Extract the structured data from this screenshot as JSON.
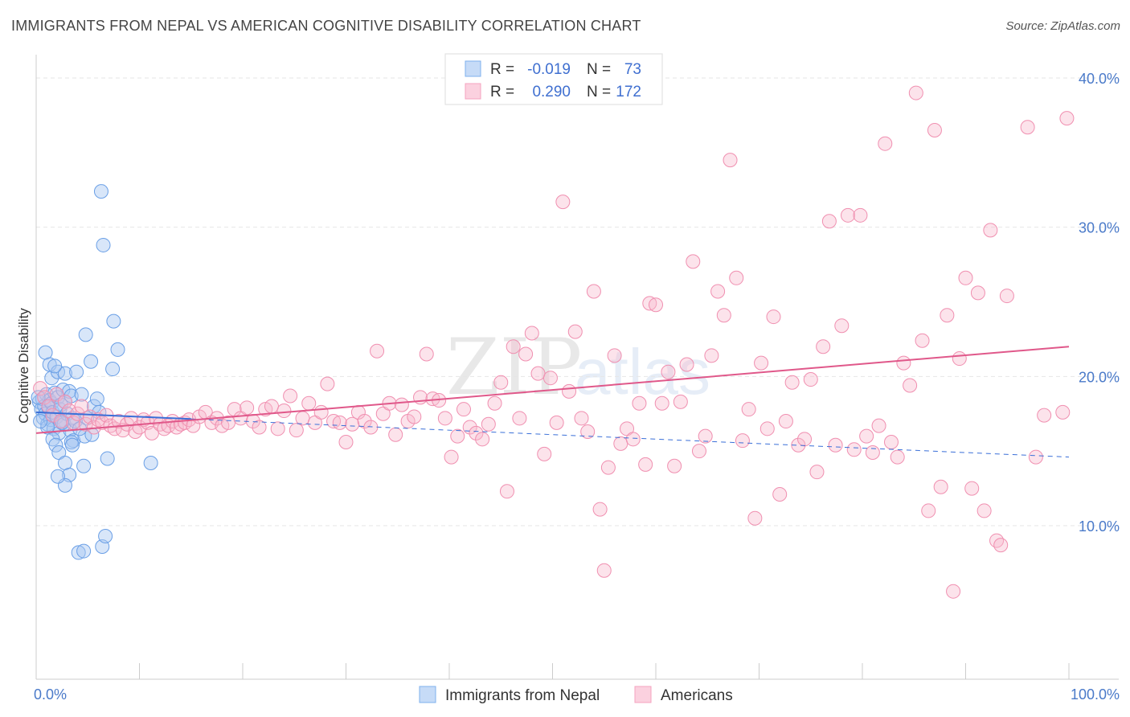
{
  "title": "IMMIGRANTS FROM NEPAL VS AMERICAN COGNITIVE DISABILITY CORRELATION CHART",
  "source": "Source: ZipAtlas.com",
  "watermark": "ZIPatlas",
  "chart_data": {
    "type": "scatter",
    "xlabel": "",
    "ylabel": "Cognitive Disability",
    "xlim": [
      0,
      100
    ],
    "ylim": [
      0,
      40
    ],
    "x_tick_labels": [
      "0.0%",
      "100.0%"
    ],
    "y_ticks": [
      10,
      20,
      30,
      40
    ],
    "y_tick_labels": [
      "10.0%",
      "20.0%",
      "30.0%",
      "40.0%"
    ],
    "legend_top": [
      {
        "r_label": "R =",
        "r_value": "-0.019",
        "n_label": "N =",
        "n_value": "73"
      },
      {
        "r_label": "R =",
        "r_value": "0.290",
        "n_label": "N =",
        "n_value": "172"
      }
    ],
    "series": [
      {
        "name": "Immigrants from Nepal",
        "color": "#7fb0ee",
        "line_color": "#3a6fd8",
        "trend": {
          "x0": 0,
          "y0": 17.6,
          "x1": 100,
          "y1": 14.6,
          "solid_until": 15
        },
        "points": [
          [
            0.3,
            18.3
          ],
          [
            0.5,
            17.8
          ],
          [
            0.6,
            18.5
          ],
          [
            0.7,
            17.2
          ],
          [
            0.8,
            18.0
          ],
          [
            0.9,
            17.5
          ],
          [
            1.0,
            18.8
          ],
          [
            1.1,
            16.8
          ],
          [
            1.2,
            17.9
          ],
          [
            1.3,
            18.4
          ],
          [
            1.4,
            17.1
          ],
          [
            1.5,
            18.2
          ],
          [
            1.6,
            17.6
          ],
          [
            1.7,
            16.5
          ],
          [
            1.8,
            18.9
          ],
          [
            2.0,
            17.3
          ],
          [
            2.1,
            18.6
          ],
          [
            2.2,
            16.2
          ],
          [
            2.3,
            17.8
          ],
          [
            2.4,
            18.1
          ],
          [
            2.5,
            17.0
          ],
          [
            2.6,
            19.1
          ],
          [
            2.7,
            16.8
          ],
          [
            2.8,
            18.3
          ],
          [
            3.0,
            17.5
          ],
          [
            3.2,
            19.0
          ],
          [
            3.3,
            16.4
          ],
          [
            3.4,
            18.7
          ],
          [
            3.5,
            17.2
          ],
          [
            3.6,
            15.7
          ],
          [
            0.9,
            21.6
          ],
          [
            1.3,
            20.8
          ],
          [
            1.5,
            19.9
          ],
          [
            2.1,
            20.3
          ],
          [
            2.8,
            20.2
          ],
          [
            1.8,
            20.7
          ],
          [
            3.9,
            20.3
          ],
          [
            4.8,
            22.8
          ],
          [
            5.3,
            21.0
          ],
          [
            7.4,
            20.5
          ],
          [
            7.5,
            23.7
          ],
          [
            7.9,
            21.8
          ],
          [
            6.5,
            28.8
          ],
          [
            6.3,
            32.4
          ],
          [
            1.6,
            15.8
          ],
          [
            1.9,
            15.4
          ],
          [
            2.2,
            14.9
          ],
          [
            2.8,
            14.2
          ],
          [
            3.2,
            13.4
          ],
          [
            3.4,
            15.6
          ],
          [
            3.5,
            15.4
          ],
          [
            4.6,
            14.0
          ],
          [
            4.7,
            16.0
          ],
          [
            5.4,
            16.1
          ],
          [
            6.9,
            14.5
          ],
          [
            11.1,
            14.2
          ],
          [
            2.8,
            12.7
          ],
          [
            2.1,
            13.3
          ],
          [
            4.1,
            8.2
          ],
          [
            4.6,
            8.3
          ],
          [
            6.4,
            8.6
          ],
          [
            6.7,
            9.3
          ],
          [
            5.6,
            18.0
          ],
          [
            5.9,
            18.5
          ],
          [
            4.4,
            18.8
          ],
          [
            4.9,
            17.2
          ],
          [
            6.1,
            17.6
          ],
          [
            3.8,
            17.0
          ],
          [
            4.2,
            16.5
          ],
          [
            2.5,
            16.9
          ],
          [
            1.1,
            16.6
          ],
          [
            0.4,
            17.0
          ],
          [
            0.2,
            18.6
          ]
        ]
      },
      {
        "name": "Americans",
        "color": "#f4a3bf",
        "line_color": "#e0588a",
        "trend": {
          "x0": 0,
          "y0": 16.2,
          "x1": 100,
          "y1": 22.0
        },
        "points": [
          [
            0.4,
            19.2
          ],
          [
            0.8,
            18.6
          ],
          [
            1.2,
            18.0
          ],
          [
            1.6,
            17.4
          ],
          [
            2.0,
            18.8
          ],
          [
            2.4,
            17.0
          ],
          [
            2.8,
            18.3
          ],
          [
            3.2,
            17.7
          ],
          [
            3.6,
            16.9
          ],
          [
            4.0,
            17.5
          ],
          [
            4.4,
            18.0
          ],
          [
            4.8,
            16.8
          ],
          [
            5.2,
            17.3
          ],
          [
            5.6,
            16.6
          ],
          [
            6.0,
            17.1
          ],
          [
            6.4,
            16.9
          ],
          [
            6.8,
            17.4
          ],
          [
            7.2,
            16.7
          ],
          [
            7.6,
            16.5
          ],
          [
            8.0,
            17.0
          ],
          [
            8.4,
            16.4
          ],
          [
            8.8,
            16.8
          ],
          [
            9.2,
            17.2
          ],
          [
            9.6,
            16.3
          ],
          [
            10.0,
            16.6
          ],
          [
            10.4,
            17.1
          ],
          [
            10.8,
            16.9
          ],
          [
            11.2,
            16.2
          ],
          [
            11.6,
            17.2
          ],
          [
            12.0,
            16.8
          ],
          [
            12.4,
            16.5
          ],
          [
            12.8,
            16.7
          ],
          [
            13.2,
            17.0
          ],
          [
            13.6,
            16.6
          ],
          [
            14.0,
            16.8
          ],
          [
            14.4,
            16.9
          ],
          [
            14.8,
            17.1
          ],
          [
            15.2,
            16.7
          ],
          [
            15.8,
            17.3
          ],
          [
            16.4,
            17.6
          ],
          [
            17.0,
            16.9
          ],
          [
            17.5,
            17.2
          ],
          [
            18.0,
            16.7
          ],
          [
            18.6,
            16.9
          ],
          [
            19.2,
            17.8
          ],
          [
            19.8,
            17.2
          ],
          [
            20.4,
            17.9
          ],
          [
            21.0,
            17.0
          ],
          [
            21.6,
            16.6
          ],
          [
            22.2,
            17.8
          ],
          [
            22.8,
            18.0
          ],
          [
            23.4,
            16.5
          ],
          [
            24.0,
            17.7
          ],
          [
            24.6,
            18.7
          ],
          [
            25.2,
            16.4
          ],
          [
            25.8,
            17.2
          ],
          [
            26.4,
            18.2
          ],
          [
            27.0,
            16.9
          ],
          [
            27.6,
            17.6
          ],
          [
            28.2,
            19.5
          ],
          [
            28.8,
            17.0
          ],
          [
            29.4,
            16.9
          ],
          [
            30.0,
            15.6
          ],
          [
            30.6,
            16.8
          ],
          [
            31.2,
            17.6
          ],
          [
            31.8,
            17.0
          ],
          [
            32.4,
            16.6
          ],
          [
            33.0,
            21.7
          ],
          [
            33.6,
            17.5
          ],
          [
            34.2,
            18.2
          ],
          [
            34.8,
            16.1
          ],
          [
            35.4,
            18.1
          ],
          [
            36.0,
            17.0
          ],
          [
            36.6,
            17.3
          ],
          [
            37.2,
            18.6
          ],
          [
            37.8,
            21.5
          ],
          [
            38.4,
            18.5
          ],
          [
            39.0,
            18.4
          ],
          [
            39.6,
            17.2
          ],
          [
            40.2,
            14.6
          ],
          [
            40.8,
            16.0
          ],
          [
            41.4,
            17.8
          ],
          [
            42.0,
            16.6
          ],
          [
            42.6,
            16.2
          ],
          [
            43.2,
            15.8
          ],
          [
            43.8,
            16.8
          ],
          [
            44.4,
            18.2
          ],
          [
            45.0,
            19.6
          ],
          [
            45.6,
            12.3
          ],
          [
            46.2,
            22.0
          ],
          [
            46.8,
            17.2
          ],
          [
            47.4,
            21.5
          ],
          [
            48.0,
            22.9
          ],
          [
            48.6,
            20.2
          ],
          [
            49.2,
            14.8
          ],
          [
            49.8,
            19.9
          ],
          [
            50.4,
            16.9
          ],
          [
            51.0,
            31.7
          ],
          [
            51.6,
            19.0
          ],
          [
            52.2,
            23.0
          ],
          [
            52.8,
            17.2
          ],
          [
            53.4,
            16.3
          ],
          [
            54.0,
            25.7
          ],
          [
            54.6,
            11.1
          ],
          [
            55.0,
            7.0
          ],
          [
            55.4,
            13.9
          ],
          [
            56.0,
            21.4
          ],
          [
            56.6,
            15.5
          ],
          [
            57.2,
            16.5
          ],
          [
            57.8,
            15.8
          ],
          [
            58.4,
            18.2
          ],
          [
            59.0,
            14.1
          ],
          [
            59.4,
            24.9
          ],
          [
            60.0,
            24.8
          ],
          [
            60.6,
            18.2
          ],
          [
            61.2,
            20.3
          ],
          [
            61.8,
            14.0
          ],
          [
            62.4,
            18.3
          ],
          [
            63.0,
            20.8
          ],
          [
            63.6,
            27.7
          ],
          [
            64.2,
            15.0
          ],
          [
            64.8,
            16.0
          ],
          [
            65.4,
            21.4
          ],
          [
            66.0,
            25.7
          ],
          [
            66.6,
            24.1
          ],
          [
            67.2,
            34.5
          ],
          [
            67.8,
            26.6
          ],
          [
            68.4,
            15.7
          ],
          [
            69.0,
            17.8
          ],
          [
            69.6,
            10.5
          ],
          [
            70.2,
            20.9
          ],
          [
            70.8,
            16.5
          ],
          [
            71.4,
            24.0
          ],
          [
            72.0,
            12.1
          ],
          [
            72.6,
            17.0
          ],
          [
            73.2,
            19.6
          ],
          [
            73.8,
            15.4
          ],
          [
            74.4,
            15.8
          ],
          [
            75.0,
            19.8
          ],
          [
            75.6,
            13.6
          ],
          [
            76.2,
            22.0
          ],
          [
            76.8,
            30.4
          ],
          [
            77.4,
            15.4
          ],
          [
            78.0,
            23.4
          ],
          [
            78.6,
            30.8
          ],
          [
            79.2,
            15.1
          ],
          [
            79.8,
            30.8
          ],
          [
            80.4,
            16.0
          ],
          [
            81.0,
            14.9
          ],
          [
            81.6,
            16.7
          ],
          [
            82.2,
            35.6
          ],
          [
            82.8,
            15.6
          ],
          [
            83.4,
            14.6
          ],
          [
            84.0,
            20.9
          ],
          [
            84.6,
            19.4
          ],
          [
            85.2,
            39.0
          ],
          [
            85.8,
            22.4
          ],
          [
            86.4,
            11.0
          ],
          [
            87.0,
            36.5
          ],
          [
            87.6,
            12.6
          ],
          [
            88.2,
            24.1
          ],
          [
            88.8,
            5.6
          ],
          [
            89.4,
            21.2
          ],
          [
            90.0,
            26.6
          ],
          [
            90.6,
            12.5
          ],
          [
            91.2,
            25.6
          ],
          [
            91.8,
            11.0
          ],
          [
            92.4,
            29.8
          ],
          [
            93.0,
            9.0
          ],
          [
            93.4,
            8.7
          ],
          [
            94.0,
            25.4
          ],
          [
            96.0,
            36.7
          ],
          [
            97.6,
            17.4
          ],
          [
            99.8,
            37.3
          ],
          [
            99.4,
            17.6
          ],
          [
            96.8,
            14.6
          ]
        ]
      }
    ],
    "legend_bottom": [
      "Immigrants from Nepal",
      "Americans"
    ]
  }
}
